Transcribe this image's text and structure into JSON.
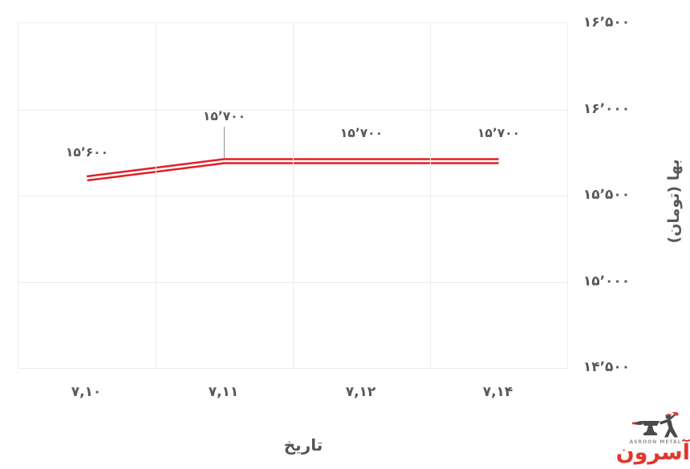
{
  "chart_data": {
    "type": "line",
    "categories": [
      "۷,۱۰",
      "۷,۱۱",
      "۷,۱۲",
      "۷,۱۴"
    ],
    "series": [
      {
        "name": "بها (تومان)",
        "values": [
          15600,
          15700,
          15700,
          15700
        ]
      }
    ],
    "data_labels": [
      {
        "text": "۱۵٬۶۰۰",
        "dy": -33,
        "leader": false
      },
      {
        "text": "۱۵٬۷۰۰",
        "dy": -56,
        "leader": true
      },
      {
        "text": "۱۵٬۷۰۰",
        "dy": -35,
        "leader": false
      },
      {
        "text": "۱۵٬۷۰۰",
        "dy": -35,
        "leader": false
      }
    ],
    "xlabel": "تاریخ",
    "ylabel": "بها (تومان)",
    "y_ticks": [
      {
        "value": 16500,
        "label": "۱۶٬۵۰۰"
      },
      {
        "value": 16000,
        "label": "۱۶٬۰۰۰"
      },
      {
        "value": 15500,
        "label": "۱۵٬۵۰۰"
      },
      {
        "value": 15000,
        "label": "۱۵٬۰۰۰"
      },
      {
        "value": 14500,
        "label": "۱۴٬۵۰۰"
      }
    ],
    "ylim": [
      14500,
      16500
    ],
    "grid": true,
    "y_axis_position": "right",
    "line_color": "#e11e25",
    "line_core_color": "#ffffff",
    "leader_color": "#9a9a9b",
    "label_color": "#58595b"
  },
  "logo": {
    "brand_en": "ASROON METAL",
    "brand_fa": "آسرون",
    "accent": "#e2362c",
    "icon": "blacksmith-anvil-icon"
  }
}
